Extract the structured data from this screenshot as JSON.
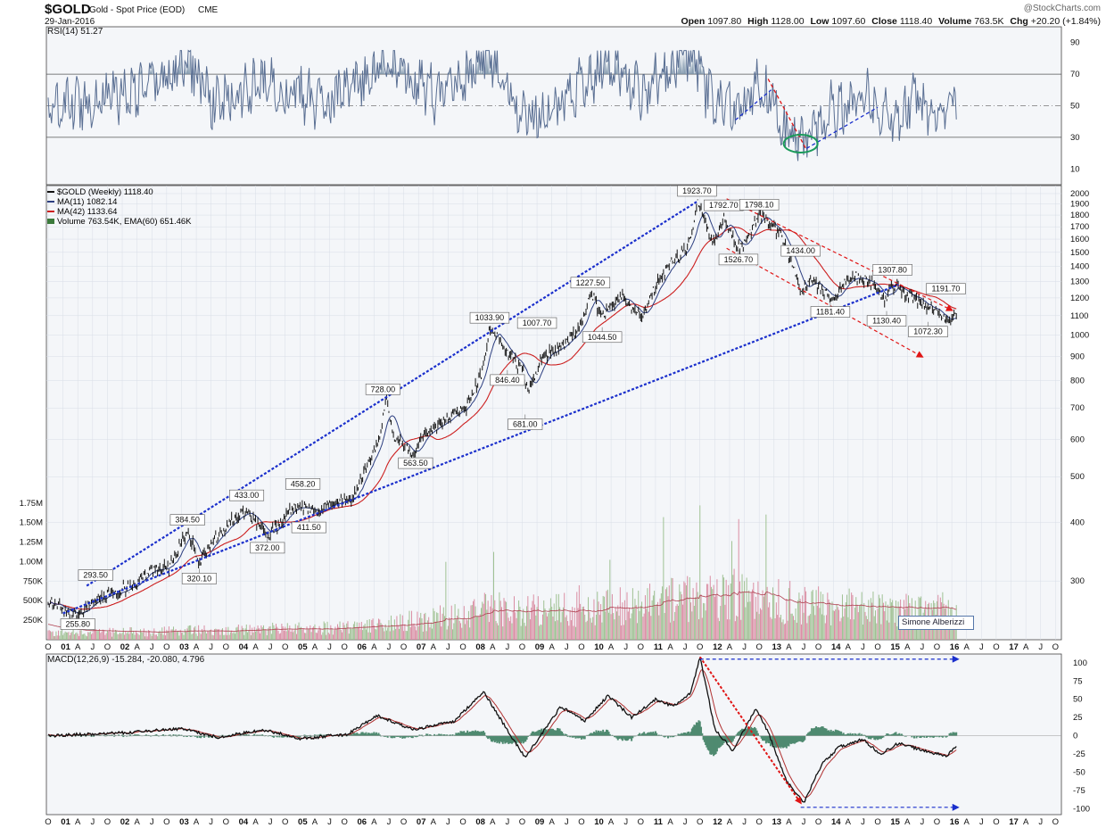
{
  "header": {
    "symbol": "$GOLD",
    "name": "Gold - Spot Price (EOD)",
    "exchange": "CME",
    "date": "29-Jan-2016",
    "watermark": "@StockCharts.com",
    "ohlc": {
      "open_label": "Open",
      "open": "1097.80",
      "high_label": "High",
      "high": "1128.00",
      "low_label": "Low",
      "low": "1097.60",
      "close_label": "Close",
      "close": "1118.40",
      "volume_label": "Volume",
      "volume": "763.5K",
      "chg_label": "Chg",
      "chg": "+20.20 (+1.84%)"
    }
  },
  "colors": {
    "panel_bg": "#f4f6f9",
    "grid": "#d8dde6",
    "rsi_line": "#5a6f93",
    "rsi_fill": "#6f8aa0",
    "price_line": "#111111",
    "ma11": "#2c3e80",
    "ma42": "#cc1f1f",
    "volume_up": "#9cbf8f",
    "volume_down": "#d98aa0",
    "trend_blue": "#1a2fcc",
    "trend_red": "#e01515",
    "macd": "#111111",
    "signal": "#b03030",
    "hist": "#4f8a70",
    "circle": "#1a9a5a"
  },
  "x_axis": {
    "labels": [
      "O",
      "01",
      "A",
      "J",
      "O",
      "02",
      "A",
      "J",
      "O",
      "03",
      "A",
      "J",
      "O",
      "04",
      "A",
      "J",
      "O",
      "05",
      "A",
      "J",
      "O",
      "06",
      "A",
      "J",
      "O",
      "07",
      "A",
      "J",
      "O",
      "08",
      "A",
      "J",
      "O",
      "09",
      "A",
      "J",
      "O",
      "10",
      "A",
      "J",
      "O",
      "11",
      "A",
      "J",
      "O",
      "12",
      "A",
      "J",
      "O",
      "13",
      "A",
      "J",
      "O",
      "14",
      "A",
      "J",
      "O",
      "15",
      "A",
      "J",
      "O",
      "16",
      "A",
      "J",
      "O",
      "17",
      "A",
      "J",
      "O"
    ],
    "bold": [
      "01",
      "02",
      "03",
      "04",
      "05",
      "06",
      "07",
      "08",
      "09",
      "10",
      "11",
      "12",
      "13",
      "14",
      "15",
      "16",
      "17"
    ]
  },
  "chart_data": [
    {
      "id": "rsi",
      "type": "line",
      "title": "RSI(14) 51.27",
      "y_ticks": [
        10,
        30,
        50,
        70,
        90
      ],
      "ylim": [
        0,
        100
      ],
      "overbought": 70,
      "oversold": 30,
      "midline": 50,
      "series": [
        {
          "x": [
            2000.75,
            2001.5,
            2002.5,
            2003.1,
            2003.6,
            2004.5,
            2005.3,
            2006.1,
            2006.4,
            2007.3,
            2008.2,
            2008.8,
            2009.4,
            2010.2,
            2010.8,
            2011.3,
            2011.6,
            2011.9,
            2012.4,
            2012.7,
            2013.1,
            2013.35,
            2013.6,
            2013.9,
            2014.5,
            2015.0,
            2015.4,
            2015.8,
            2016.1
          ],
          "y": [
            45,
            55,
            62,
            79,
            50,
            65,
            52,
            62,
            80,
            55,
            80,
            40,
            55,
            78,
            58,
            80,
            83,
            55,
            48,
            68,
            40,
            24,
            28,
            45,
            58,
            40,
            55,
            40,
            51
          ]
        }
      ],
      "annotations": {
        "trend_red": [
          [
            2012.9,
            67
          ],
          [
            2013.55,
            22
          ]
        ],
        "trend_blue_1": [
          [
            2012.35,
            41
          ],
          [
            2012.95,
            60
          ]
        ],
        "trend_blue_2": [
          [
            2013.55,
            23
          ],
          [
            2014.75,
            49
          ]
        ],
        "circle_center": [
          2013.45,
          26
        ]
      }
    },
    {
      "id": "price",
      "type": "line",
      "scale": "log",
      "legend": [
        {
          "label": "$GOLD (Weekly) 1118.40",
          "color": "#111111"
        },
        {
          "label": "MA(11) 1082.14",
          "color": "#2c3e80"
        },
        {
          "label": "MA(42) 1133.64",
          "color": "#cc1f1f"
        },
        {
          "label": "Volume 763.54K, EMA(60) 651.46K",
          "color": "#3b7a3b"
        }
      ],
      "y_ticks": [
        300,
        400,
        500,
        600,
        700,
        800,
        900,
        1000,
        1100,
        1200,
        1300,
        1400,
        1500,
        1600,
        1700,
        1800,
        1900,
        2000
      ],
      "ylim": [
        225,
        2080
      ],
      "series": [
        {
          "name": "$GOLD",
          "x": [
            2000.75,
            2001.0,
            2001.3,
            2001.5,
            2001.85,
            2002.2,
            2002.45,
            2002.8,
            2003.1,
            2003.3,
            2003.6,
            2003.9,
            2004.1,
            2004.45,
            2004.9,
            2005.3,
            2005.6,
            2005.9,
            2006.1,
            2006.35,
            2006.45,
            2006.6,
            2006.9,
            2007.15,
            2007.45,
            2007.8,
            2008.1,
            2008.2,
            2008.5,
            2008.75,
            2008.85,
            2009.1,
            2009.3,
            2009.5,
            2009.75,
            2009.9,
            2010.1,
            2010.45,
            2010.8,
            2010.95,
            2011.2,
            2011.45,
            2011.6,
            2011.7,
            2011.9,
            2012.0,
            2012.15,
            2012.4,
            2012.55,
            2012.75,
            2012.95,
            2013.1,
            2013.3,
            2013.45,
            2013.6,
            2013.8,
            2014.0,
            2014.2,
            2014.4,
            2014.7,
            2014.85,
            2015.05,
            2015.2,
            2015.5,
            2015.7,
            2015.9,
            2016.0,
            2016.08
          ],
          "y": [
            272,
            262,
            256,
            272,
            285,
            293,
            312,
            322,
            384,
            330,
            372,
            410,
            420,
            372,
            433,
            420,
            440,
            450,
            520,
            600,
            728,
            600,
            563,
            620,
            660,
            700,
            850,
            1033,
            920,
            846,
            760,
            900,
            930,
            960,
            1060,
            1227,
            1100,
            1200,
            1100,
            1230,
            1400,
            1500,
            1600,
            1923,
            1650,
            1560,
            1792,
            1526,
            1600,
            1798,
            1700,
            1650,
            1434,
            1220,
            1300,
            1250,
            1181,
            1300,
            1330,
            1280,
            1190,
            1280,
            1230,
            1160,
            1140,
            1060,
            1090,
            1118
          ]
        }
      ],
      "point_labels": [
        {
          "text": "255.80",
          "x": 2001.25,
          "y": 256,
          "pos": "below"
        },
        {
          "text": "293.50",
          "x": 2001.55,
          "y": 293,
          "pos": "above"
        },
        {
          "text": "320.10",
          "x": 2003.3,
          "y": 320,
          "pos": "below"
        },
        {
          "text": "384.50",
          "x": 2003.1,
          "y": 384,
          "pos": "above"
        },
        {
          "text": "433.00",
          "x": 2004.1,
          "y": 433,
          "pos": "above"
        },
        {
          "text": "372.00",
          "x": 2004.45,
          "y": 372,
          "pos": "below"
        },
        {
          "text": "458.20",
          "x": 2005.05,
          "y": 458,
          "pos": "above"
        },
        {
          "text": "411.50",
          "x": 2005.15,
          "y": 411,
          "pos": "below"
        },
        {
          "text": "728.00",
          "x": 2006.4,
          "y": 728,
          "pos": "above"
        },
        {
          "text": "563.50",
          "x": 2006.95,
          "y": 563,
          "pos": "below"
        },
        {
          "text": "1033.90",
          "x": 2008.2,
          "y": 1033,
          "pos": "above"
        },
        {
          "text": "846.40",
          "x": 2008.5,
          "y": 846,
          "pos": "below"
        },
        {
          "text": "681.00",
          "x": 2008.8,
          "y": 681,
          "pos": "below"
        },
        {
          "text": "1007.70",
          "x": 2009.0,
          "y": 1007,
          "pos": "above"
        },
        {
          "text": "1044.50",
          "x": 2010.1,
          "y": 1044,
          "pos": "below"
        },
        {
          "text": "1227.50",
          "x": 2009.9,
          "y": 1227,
          "pos": "above"
        },
        {
          "text": "1923.70",
          "x": 2011.7,
          "y": 1923,
          "pos": "above"
        },
        {
          "text": "1792.70",
          "x": 2012.15,
          "y": 1792,
          "pos": "above"
        },
        {
          "text": "1798.10",
          "x": 2012.75,
          "y": 1798,
          "pos": "above"
        },
        {
          "text": "1526.70",
          "x": 2012.4,
          "y": 1526,
          "pos": "below"
        },
        {
          "text": "1434.00",
          "x": 2013.45,
          "y": 1434,
          "pos": "above"
        },
        {
          "text": "1181.40",
          "x": 2013.95,
          "y": 1181,
          "pos": "below"
        },
        {
          "text": "1307.80",
          "x": 2015.0,
          "y": 1307,
          "pos": "above"
        },
        {
          "text": "1130.40",
          "x": 2014.9,
          "y": 1130,
          "pos": "below"
        },
        {
          "text": "1191.70",
          "x": 2015.9,
          "y": 1191,
          "pos": "above"
        },
        {
          "text": "1072.30",
          "x": 2015.6,
          "y": 1072,
          "pos": "below"
        }
      ],
      "trendlines": {
        "blue_upper": [
          [
            2001.4,
            293
          ],
          [
            2011.7,
            1923
          ]
        ],
        "blue_lower": [
          [
            2001.0,
            256
          ],
          [
            2015.1,
            1280
          ]
        ],
        "red_upper": [
          [
            2012.2,
            1950
          ],
          [
            2016.0,
            1130
          ]
        ],
        "red_lower": [
          [
            2012.2,
            1530
          ],
          [
            2015.5,
            900
          ]
        ]
      },
      "volume": {
        "y_ticks": [
          "250K",
          "500K",
          "750K",
          "1.00M",
          "1.25M",
          "1.50M",
          "1.75M"
        ],
        "ymax": 1.85,
        "note": "Simone Alberizzi"
      }
    },
    {
      "id": "macd",
      "type": "line",
      "title": "MACD(12,26,9) -15.284, -20.080, 4.796",
      "y_ticks": [
        -100,
        -75,
        -50,
        -25,
        0,
        25,
        50,
        75,
        100
      ],
      "ylim": [
        -108,
        112
      ],
      "series": [
        {
          "name": "MACD",
          "x": [
            2000.75,
            2002.0,
            2003.0,
            2003.6,
            2004.4,
            2005.0,
            2005.8,
            2006.3,
            2006.9,
            2007.6,
            2008.1,
            2008.6,
            2008.8,
            2009.4,
            2009.8,
            2010.2,
            2010.6,
            2011.0,
            2011.3,
            2011.6,
            2011.75,
            2012.0,
            2012.3,
            2012.7,
            2012.9,
            2013.2,
            2013.5,
            2013.8,
            2014.1,
            2014.5,
            2014.8,
            2015.1,
            2015.5,
            2015.9,
            2016.08
          ],
          "y": [
            0,
            4,
            10,
            -2,
            8,
            -4,
            2,
            28,
            8,
            20,
            60,
            -5,
            -30,
            40,
            20,
            55,
            25,
            50,
            40,
            60,
            108,
            10,
            -20,
            38,
            5,
            -60,
            -92,
            -40,
            -15,
            -5,
            -25,
            -10,
            -20,
            -28,
            -15
          ]
        }
      ],
      "annotations": {
        "red_arrow": [
          [
            2011.75,
            108
          ],
          [
            2013.45,
            -92
          ]
        ],
        "blue_top": [
          [
            2011.75,
            105
          ],
          [
            2016.1,
            105
          ]
        ],
        "blue_bottom": [
          [
            2013.45,
            -98
          ],
          [
            2016.1,
            -98
          ]
        ]
      }
    }
  ]
}
